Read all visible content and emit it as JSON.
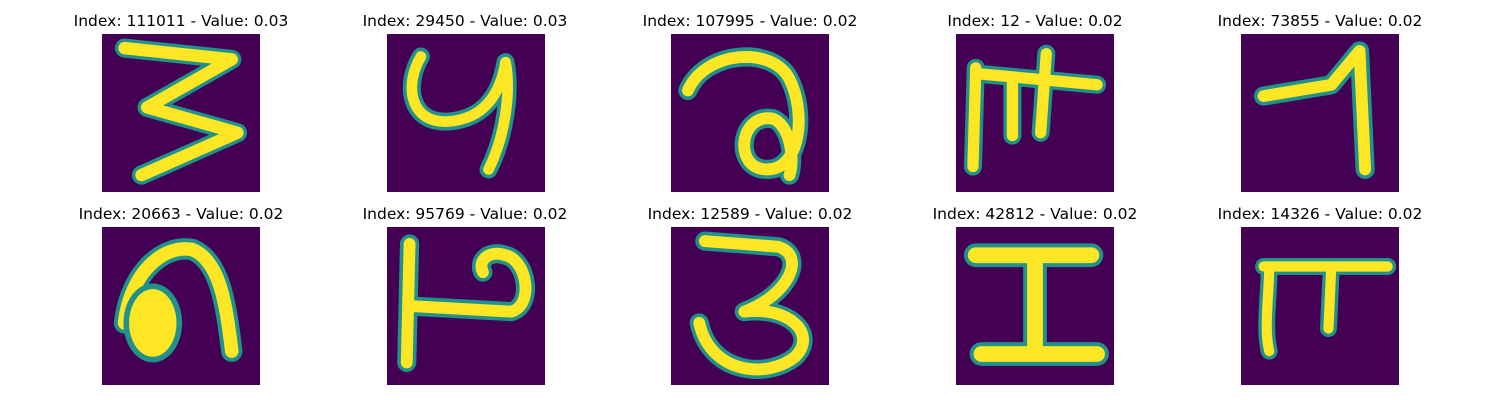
{
  "colors": {
    "background": "#440154",
    "stroke_outer": "#21918c",
    "stroke_mid": "#5ec962",
    "stroke_inner": "#fde725"
  },
  "panels": [
    {
      "title": "Index: 111011 - Value: 0.03",
      "glyph": "glyph-3-zigzag"
    },
    {
      "title": "Index: 29450 - Value: 0.03",
      "glyph": "glyph-hook"
    },
    {
      "title": "Index: 107995 - Value: 0.02",
      "glyph": "glyph-loop"
    },
    {
      "title": "Index: 12 - Value: 0.02",
      "glyph": "glyph-pi-cross"
    },
    {
      "title": "Index: 73855 - Value: 0.02",
      "glyph": "glyph-seven"
    },
    {
      "title": "Index: 20663 - Value: 0.02",
      "glyph": "glyph-arch"
    },
    {
      "title": "Index: 95769 - Value: 0.02",
      "glyph": "glyph-p-bar"
    },
    {
      "title": "Index: 12589 - Value: 0.02",
      "glyph": "glyph-3-round"
    },
    {
      "title": "Index: 42812 - Value: 0.02",
      "glyph": "glyph-i-beam"
    },
    {
      "title": "Index: 14326 - Value: 0.02",
      "glyph": "glyph-pi"
    }
  ]
}
